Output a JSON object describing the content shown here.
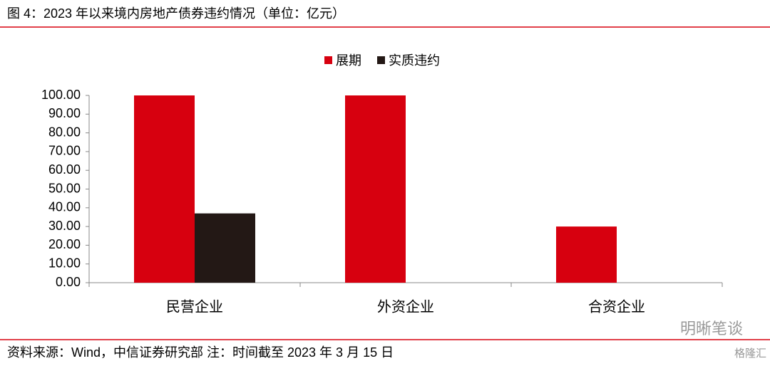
{
  "chart_data": {
    "type": "bar",
    "title": "图 4：2023 年以来境内房地产债券违约情况（单位：亿元）",
    "source": "资料来源：Wind，中信证券研究部 注：时间截至 2023 年 3 月 15 日",
    "watermark": "明晰笔谈",
    "watermark2": "格隆汇",
    "categories": [
      "民营企业",
      "外资企业",
      "合资企业"
    ],
    "series": [
      {
        "name": "展期",
        "color": "#d7000f",
        "values": [
          100,
          100,
          30
        ]
      },
      {
        "name": "实质违约",
        "color": "#231815",
        "values": [
          37,
          null,
          null
        ]
      }
    ],
    "ylim": [
      0,
      100
    ],
    "yticks": [
      {
        "value": 0,
        "label": "0.00"
      },
      {
        "value": 10,
        "label": "10.00"
      },
      {
        "value": 20,
        "label": "20.00"
      },
      {
        "value": 30,
        "label": "30.00"
      },
      {
        "value": 40,
        "label": "40.00"
      },
      {
        "value": 50,
        "label": "50.00"
      },
      {
        "value": 60,
        "label": "60.00"
      },
      {
        "value": 70,
        "label": "70.00"
      },
      {
        "value": 80,
        "label": "80.00"
      },
      {
        "value": 90,
        "label": "90.00"
      },
      {
        "value": 100,
        "label": "100.00"
      }
    ],
    "legend": "top"
  }
}
